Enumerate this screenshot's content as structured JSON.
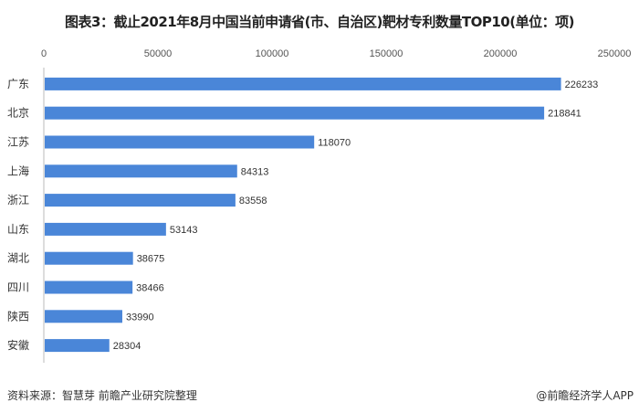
{
  "title": "图表3：截止2021年8月中国当前申请省(市、自治区)靶材专利数量TOP10(单位：项)",
  "source": "资料来源：智慧芽 前瞻产业研究院整理",
  "credit": "@前瞻经济学人APP",
  "chart_data": {
    "type": "bar",
    "orientation": "horizontal",
    "title": "图表3：截止2021年8月中国当前申请省(市、自治区)靶材专利数量TOP10(单位：项)",
    "categories": [
      "广东",
      "北京",
      "江苏",
      "上海",
      "浙江",
      "山东",
      "湖北",
      "四川",
      "陕西",
      "安徽"
    ],
    "values": [
      226233,
      218841,
      118070,
      84313,
      83558,
      53143,
      38675,
      38466,
      33990,
      28304
    ],
    "xlim": [
      0,
      250000
    ],
    "xticks": [
      "0",
      "50000",
      "100000",
      "150000",
      "200000",
      "250000"
    ],
    "x_axis_position": "top",
    "grid": false,
    "data_labels": true,
    "bar_color": "#4a86d8"
  }
}
